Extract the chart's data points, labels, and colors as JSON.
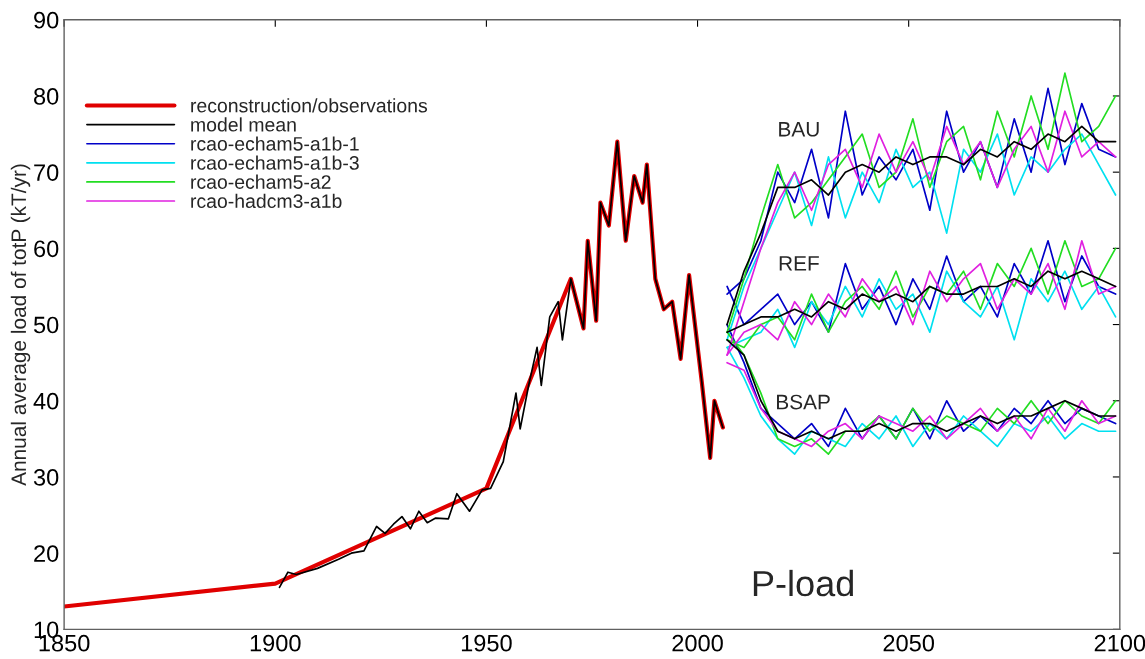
{
  "chart_data": {
    "type": "line",
    "ylabel": "Annual average load of totP (kT/yr)",
    "xlim": [
      1850,
      2100
    ],
    "xticks": [
      1850,
      1900,
      1950,
      2000,
      2050,
      2100
    ],
    "ylim": [
      10,
      90
    ],
    "yticks": [
      10,
      20,
      30,
      40,
      50,
      60,
      70,
      80,
      90
    ],
    "legend": "top left",
    "line_style": "solid",
    "annotations": [
      "BAU",
      "REF",
      "BSAP",
      "P-load"
    ],
    "series": [
      {
        "name": "reconstruction/observations",
        "color": "#e00000",
        "x": [
          1850,
          1900,
          1950,
          1970,
          1973,
          1974,
          1976,
          1977,
          1979,
          1981,
          1983,
          1985,
          1987,
          1988,
          1990,
          1992,
          1994,
          1996,
          1998,
          2001,
          2003,
          2004,
          2006
        ],
        "values": [
          13,
          16,
          28.5,
          56,
          49.5,
          61,
          50.5,
          66,
          63,
          74,
          61,
          69.5,
          66,
          71,
          56,
          52,
          53,
          45.5,
          56.5,
          42.5,
          32.5,
          40,
          36.5
        ]
      },
      {
        "name": "model mean",
        "color": "#000000",
        "x": [
          1901,
          1903,
          1905,
          1910,
          1915,
          1918,
          1921,
          1924,
          1926,
          1928,
          1930,
          1932,
          1934,
          1936,
          1938,
          1941,
          1943,
          1946,
          1949,
          1951,
          1954,
          1957,
          1958,
          1960,
          1962,
          1963,
          1965,
          1967,
          1968,
          1970,
          1973,
          1974,
          1976,
          1977,
          1979,
          1981,
          1983,
          1985,
          1987,
          1988,
          1990,
          1992,
          1994,
          1996,
          1998,
          2001,
          2003,
          2004,
          2006
        ],
        "values": [
          15.5,
          17.5,
          17.2,
          18,
          19.2,
          20,
          20.3,
          23.5,
          22.6,
          23.8,
          24.8,
          23.2,
          25.5,
          24,
          24.6,
          24.5,
          27.8,
          25.5,
          28.3,
          28.5,
          32,
          41,
          36.3,
          42,
          47,
          42,
          51,
          53,
          48,
          56,
          49.5,
          61,
          50.5,
          66,
          63,
          74,
          61,
          69.5,
          66,
          71,
          56,
          52,
          53,
          45.5,
          56.5,
          42.5,
          32.5,
          40,
          36.5
        ]
      },
      {
        "name": "rcao-echam5-a1b-1",
        "color": "#0000c8",
        "x": [
          2007,
          2011,
          2015,
          2019,
          2023,
          2027,
          2031,
          2035,
          2039,
          2043,
          2047,
          2051,
          2055,
          2059,
          2063,
          2067,
          2071,
          2075,
          2079,
          2083,
          2087,
          2091,
          2095,
          2099
        ],
        "values": [
          54,
          56,
          61,
          70,
          66,
          73,
          64,
          78,
          67,
          72,
          69,
          73,
          65,
          78,
          70,
          74,
          68,
          77,
          70,
          81,
          71,
          79,
          73,
          72
        ]
      },
      {
        "color": "#0000c8",
        "x": [
          2007,
          2011,
          2015,
          2019,
          2023,
          2027,
          2031,
          2035,
          2039,
          2043,
          2047,
          2051,
          2055,
          2059,
          2063,
          2067,
          2071,
          2075,
          2079,
          2083,
          2087,
          2091,
          2095,
          2099
        ],
        "values": [
          55,
          50,
          52,
          54,
          50,
          53,
          49,
          58,
          52,
          55,
          50,
          56,
          52,
          59,
          53,
          55,
          51,
          58,
          54,
          61,
          53,
          59,
          55,
          54
        ]
      },
      {
        "color": "#0000c8",
        "x": [
          2007,
          2011,
          2015,
          2019,
          2023,
          2027,
          2031,
          2035,
          2039,
          2043,
          2047,
          2051,
          2055,
          2059,
          2063,
          2067,
          2071,
          2075,
          2079,
          2083,
          2087,
          2091,
          2095,
          2099
        ],
        "values": [
          50,
          45,
          39,
          37,
          35,
          37,
          34,
          39,
          35,
          38,
          35,
          39,
          35,
          40,
          36,
          38,
          36,
          39,
          37,
          40,
          37,
          39,
          38,
          37
        ]
      },
      {
        "name": "rcao-echam5-a1b-3",
        "color": "#00e0f0",
        "x": [
          2007,
          2011,
          2015,
          2019,
          2023,
          2027,
          2031,
          2035,
          2039,
          2043,
          2047,
          2051,
          2055,
          2059,
          2063,
          2067,
          2071,
          2075,
          2079,
          2083,
          2087,
          2091,
          2095,
          2099
        ],
        "values": [
          48,
          55,
          60,
          65,
          70,
          63,
          72,
          64,
          70,
          66,
          73,
          68,
          70,
          62,
          73,
          70,
          75,
          67,
          72,
          70,
          73,
          75,
          71,
          67
        ]
      },
      {
        "color": "#00e0f0",
        "x": [
          2007,
          2011,
          2015,
          2019,
          2023,
          2027,
          2031,
          2035,
          2039,
          2043,
          2047,
          2051,
          2055,
          2059,
          2063,
          2067,
          2071,
          2075,
          2079,
          2083,
          2087,
          2091,
          2095,
          2099
        ],
        "values": [
          47,
          48,
          49,
          52,
          47,
          53,
          50,
          55,
          51,
          56,
          52,
          54,
          49,
          57,
          53,
          51,
          55,
          48,
          56,
          53,
          57,
          52,
          55,
          51
        ]
      },
      {
        "color": "#00e0f0",
        "x": [
          2007,
          2011,
          2015,
          2019,
          2023,
          2027,
          2031,
          2035,
          2039,
          2043,
          2047,
          2051,
          2055,
          2059,
          2063,
          2067,
          2071,
          2075,
          2079,
          2083,
          2087,
          2091,
          2095,
          2099
        ],
        "values": [
          47,
          43,
          38,
          35,
          33,
          36,
          35,
          34,
          37,
          35,
          38,
          34,
          37,
          35,
          38,
          36,
          34,
          37,
          36,
          38,
          35,
          37,
          36,
          36
        ]
      },
      {
        "name": "rcao-echam5-a2",
        "color": "#22dd22",
        "x": [
          2007,
          2011,
          2015,
          2019,
          2023,
          2027,
          2031,
          2035,
          2039,
          2043,
          2047,
          2051,
          2055,
          2059,
          2063,
          2067,
          2071,
          2075,
          2079,
          2083,
          2087,
          2091,
          2095,
          2099
        ],
        "values": [
          49,
          56,
          64,
          71,
          64,
          66,
          69,
          72,
          75,
          68,
          70,
          77,
          68,
          74,
          76,
          69,
          78,
          72,
          80,
          73,
          83,
          74,
          76,
          80
        ]
      },
      {
        "color": "#22dd22",
        "x": [
          2007,
          2011,
          2015,
          2019,
          2023,
          2027,
          2031,
          2035,
          2039,
          2043,
          2047,
          2051,
          2055,
          2059,
          2063,
          2067,
          2071,
          2075,
          2079,
          2083,
          2087,
          2091,
          2095,
          2099
        ],
        "values": [
          48,
          47,
          50,
          51,
          48,
          54,
          49,
          53,
          55,
          52,
          57,
          51,
          55,
          54,
          57,
          52,
          58,
          55,
          60,
          54,
          61,
          55,
          56,
          60
        ]
      },
      {
        "color": "#22dd22",
        "x": [
          2007,
          2011,
          2015,
          2019,
          2023,
          2027,
          2031,
          2035,
          2039,
          2043,
          2047,
          2051,
          2055,
          2059,
          2063,
          2067,
          2071,
          2075,
          2079,
          2083,
          2087,
          2091,
          2095,
          2099
        ],
        "values": [
          49,
          46,
          41,
          35,
          34,
          35,
          33,
          36,
          36,
          38,
          35,
          39,
          36,
          38,
          37,
          36,
          39,
          37,
          40,
          37,
          40,
          38,
          37,
          40
        ]
      },
      {
        "name": "rcao-hadcm3-a1b",
        "color": "#e020e0",
        "x": [
          2007,
          2011,
          2015,
          2019,
          2023,
          2027,
          2031,
          2035,
          2039,
          2043,
          2047,
          2051,
          2055,
          2059,
          2063,
          2067,
          2071,
          2075,
          2079,
          2083,
          2087,
          2091,
          2095,
          2099
        ],
        "values": [
          46,
          53,
          60,
          66,
          70,
          65,
          71,
          73,
          68,
          75,
          70,
          74,
          69,
          76,
          71,
          74,
          68,
          73,
          76,
          70,
          78,
          72,
          74,
          72
        ]
      },
      {
        "color": "#e020e0",
        "x": [
          2007,
          2011,
          2015,
          2019,
          2023,
          2027,
          2031,
          2035,
          2039,
          2043,
          2047,
          2051,
          2055,
          2059,
          2063,
          2067,
          2071,
          2075,
          2079,
          2083,
          2087,
          2091,
          2095,
          2099
        ],
        "values": [
          46,
          49,
          50,
          48,
          53,
          50,
          54,
          51,
          56,
          53,
          55,
          50,
          57,
          53,
          56,
          58,
          52,
          56,
          54,
          58,
          52,
          61,
          54,
          55
        ]
      },
      {
        "color": "#e020e0",
        "x": [
          2007,
          2011,
          2015,
          2019,
          2023,
          2027,
          2031,
          2035,
          2039,
          2043,
          2047,
          2051,
          2055,
          2059,
          2063,
          2067,
          2071,
          2075,
          2079,
          2083,
          2087,
          2091,
          2095,
          2099
        ],
        "values": [
          45,
          44,
          39,
          36,
          35,
          34,
          36,
          37,
          35,
          38,
          37,
          36,
          38,
          35,
          37,
          39,
          36,
          38,
          35,
          39,
          36,
          40,
          37,
          38
        ]
      },
      {
        "color": "#000000",
        "x": [
          2007,
          2011,
          2015,
          2019,
          2023,
          2027,
          2031,
          2035,
          2039,
          2043,
          2047,
          2051,
          2055,
          2059,
          2063,
          2067,
          2071,
          2075,
          2079,
          2083,
          2087,
          2091,
          2095,
          2099
        ],
        "values": [
          50,
          57,
          62,
          68,
          68,
          69,
          67,
          70,
          71,
          70,
          72,
          71,
          72,
          72,
          71,
          73,
          72,
          74,
          73,
          75,
          74,
          76,
          74,
          74
        ]
      },
      {
        "color": "#000000",
        "x": [
          2007,
          2011,
          2015,
          2019,
          2023,
          2027,
          2031,
          2035,
          2039,
          2043,
          2047,
          2051,
          2055,
          2059,
          2063,
          2067,
          2071,
          2075,
          2079,
          2083,
          2087,
          2091,
          2095,
          2099
        ],
        "values": [
          49,
          50,
          51,
          51,
          52,
          51,
          53,
          52,
          54,
          53,
          54,
          53,
          55,
          54,
          54,
          55,
          55,
          56,
          55,
          57,
          56,
          57,
          56,
          55
        ]
      },
      {
        "color": "#000000",
        "x": [
          2007,
          2011,
          2015,
          2019,
          2023,
          2027,
          2031,
          2035,
          2039,
          2043,
          2047,
          2051,
          2055,
          2059,
          2063,
          2067,
          2071,
          2075,
          2079,
          2083,
          2087,
          2091,
          2095,
          2099
        ],
        "values": [
          48,
          46,
          40,
          36,
          35,
          36,
          35,
          36,
          36,
          37,
          36,
          37,
          37,
          36,
          37,
          38,
          37,
          38,
          38,
          39,
          40,
          39,
          38,
          38
        ]
      }
    ]
  }
}
